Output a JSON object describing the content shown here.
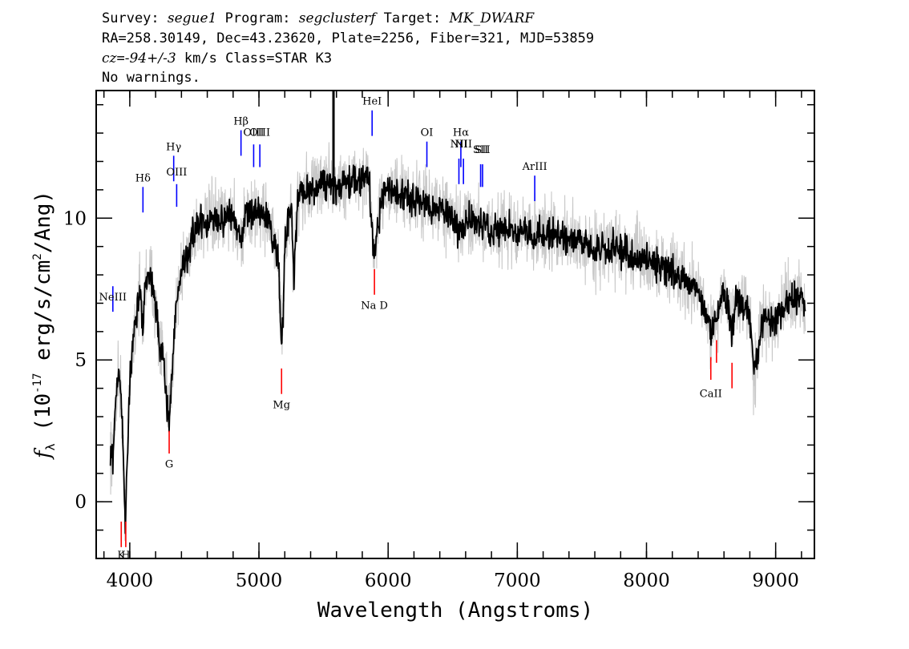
{
  "header": {
    "line1": {
      "survey_label": "Survey: ",
      "survey_value": "segue1",
      "program_label": " Program: ",
      "program_value": "segclusterf",
      "target_label": " Target: ",
      "target_value": "MK_DWARF"
    },
    "line2": "RA=258.30149, Dec=43.23620, Plate=2256, Fiber=321, MJD=53859",
    "line3": {
      "cz_label": "cz",
      "cz_eq": "=",
      "cz_value": "-94+/-3",
      "cz_rest": " km/s Class=STAR K3"
    },
    "line4": "No warnings."
  },
  "chart_data": {
    "type": "line",
    "xlabel": "Wavelength (Angstroms)",
    "ylabel": {
      "prefix": "f",
      "subscript": "λ",
      "open": " (10",
      "exponent": "-17",
      "middle": " erg/s/cm",
      "sq": "2",
      "close": "/Ang)"
    },
    "xlim": [
      3740,
      9300
    ],
    "ylim": [
      -2,
      14.5
    ],
    "x_ticks": [
      {
        "value": 4000,
        "label": "4000"
      },
      {
        "value": 5000,
        "label": "5000"
      },
      {
        "value": 6000,
        "label": "6000"
      },
      {
        "value": 7000,
        "label": "7000"
      },
      {
        "value": 8000,
        "label": "8000"
      },
      {
        "value": 9000,
        "label": "9000"
      }
    ],
    "x_minor_step": 200,
    "y_ticks": [
      {
        "value": 0,
        "label": "0"
      },
      {
        "value": 5,
        "label": "5"
      },
      {
        "value": 10,
        "label": "10"
      }
    ],
    "y_minor_step": 1,
    "series": [
      {
        "role": "flux",
        "color": "#c8c8c8",
        "noise": 0.75,
        "x": [
          3850,
          3870,
          3890,
          3910,
          3930,
          3950,
          3965,
          3980,
          4000,
          4020,
          4050,
          4080,
          4101,
          4120,
          4150,
          4180,
          4200,
          4230,
          4260,
          4290,
          4305,
          4320,
          4340,
          4360,
          4380,
          4400,
          4450,
          4500,
          4550,
          4600,
          4650,
          4700,
          4750,
          4800,
          4861,
          4900,
          4950,
          5000,
          5050,
          5100,
          5150,
          5172,
          5185,
          5200,
          5250,
          5270,
          5300,
          5400,
          5500,
          5577,
          5600,
          5700,
          5800,
          5850,
          5893,
          5950,
          6000,
          6100,
          6200,
          6300,
          6400,
          6500,
          6563,
          6600,
          6700,
          6800,
          6900,
          7000,
          7200,
          7400,
          7600,
          7800,
          8000,
          8200,
          8400,
          8498,
          8542,
          8600,
          8662,
          8700,
          8800,
          8830,
          8900,
          9000,
          9100,
          9200,
          9230
        ],
        "y": [
          2.0,
          1.5,
          3.5,
          4.5,
          4.0,
          1.5,
          -0.5,
          1.5,
          4.0,
          5.5,
          6.5,
          7.5,
          6.0,
          7.8,
          8.2,
          7.5,
          6.8,
          5.5,
          5.0,
          3.5,
          2.8,
          4.0,
          5.5,
          7.0,
          7.5,
          8.2,
          8.8,
          9.5,
          9.8,
          9.8,
          10.0,
          9.8,
          10.2,
          10.0,
          9.3,
          10.2,
          10.0,
          10.3,
          10.1,
          9.5,
          8.5,
          5.8,
          6.0,
          9.0,
          10.5,
          7.8,
          10.8,
          11.0,
          11.3,
          11.3,
          11.0,
          11.3,
          11.4,
          11.4,
          8.5,
          10.8,
          11.0,
          10.8,
          10.7,
          10.5,
          10.3,
          10.0,
          9.5,
          10.0,
          9.9,
          9.6,
          9.6,
          9.5,
          9.5,
          9.2,
          9.0,
          8.9,
          8.5,
          8.2,
          7.5,
          6.0,
          6.5,
          7.5,
          6.0,
          7.2,
          6.6,
          4.5,
          6.3,
          6.5,
          7.0,
          7.3,
          6.5
        ]
      },
      {
        "role": "model",
        "color": "#000000",
        "noise": 0.35,
        "x": [
          3850,
          3870,
          3890,
          3910,
          3930,
          3950,
          3965,
          3980,
          4000,
          4020,
          4050,
          4080,
          4101,
          4120,
          4150,
          4180,
          4200,
          4230,
          4260,
          4290,
          4305,
          4320,
          4340,
          4360,
          4380,
          4400,
          4450,
          4500,
          4550,
          4600,
          4650,
          4700,
          4750,
          4800,
          4861,
          4900,
          4950,
          5000,
          5050,
          5100,
          5150,
          5172,
          5185,
          5200,
          5250,
          5270,
          5300,
          5400,
          5500,
          5577,
          5600,
          5700,
          5800,
          5850,
          5893,
          5950,
          6000,
          6100,
          6200,
          6300,
          6400,
          6500,
          6563,
          6600,
          6700,
          6800,
          6900,
          7000,
          7200,
          7400,
          7600,
          7800,
          8000,
          8200,
          8400,
          8498,
          8542,
          8600,
          8662,
          8700,
          8800,
          8830,
          8900,
          9000,
          9100,
          9200,
          9230
        ],
        "y": [
          2.0,
          1.5,
          3.5,
          4.5,
          4.0,
          1.5,
          -0.5,
          1.5,
          4.0,
          5.5,
          6.5,
          7.5,
          6.0,
          7.8,
          8.2,
          7.5,
          6.8,
          5.5,
          5.0,
          3.5,
          2.8,
          4.0,
          5.5,
          7.0,
          7.5,
          8.2,
          8.8,
          9.5,
          9.8,
          9.8,
          10.0,
          9.8,
          10.2,
          10.0,
          9.3,
          10.2,
          10.0,
          10.3,
          10.1,
          9.5,
          8.5,
          5.8,
          6.0,
          9.0,
          10.5,
          7.8,
          10.8,
          11.0,
          11.3,
          11.3,
          11.0,
          11.3,
          11.4,
          11.4,
          8.5,
          10.8,
          11.0,
          10.8,
          10.7,
          10.5,
          10.3,
          10.0,
          9.5,
          10.0,
          9.9,
          9.6,
          9.6,
          9.5,
          9.5,
          9.2,
          9.0,
          8.9,
          8.5,
          8.2,
          7.5,
          6.0,
          6.5,
          7.5,
          6.0,
          7.2,
          6.6,
          4.5,
          6.3,
          6.5,
          7.0,
          7.3,
          6.5
        ]
      }
    ],
    "sky_line": {
      "wavelength": 5577,
      "y_from": 10.5,
      "y_to": 14.5,
      "color": "#000000"
    },
    "emission_lines": [
      {
        "label": "NeIII",
        "wavelength": 3869,
        "y_from": 6.7,
        "y_to": 7.6,
        "label_y": 7.1,
        "color": "#0000ff"
      },
      {
        "label": "Hδ",
        "wavelength": 4102,
        "y_from": 10.2,
        "y_to": 11.1,
        "label_y": 11.3,
        "color": "#0000ff"
      },
      {
        "label": "Hγ",
        "wavelength": 4340,
        "y_from": 11.3,
        "y_to": 12.2,
        "label_y": 12.4,
        "color": "#0000ff"
      },
      {
        "label": "OIII",
        "wavelength": 4363,
        "y_from": 10.4,
        "y_to": 11.2,
        "label_y": 11.5,
        "color": "#0000ff"
      },
      {
        "label": "Hβ",
        "wavelength": 4861,
        "y_from": 12.2,
        "y_to": 13.1,
        "label_y": 13.3,
        "color": "#0000ff"
      },
      {
        "label": "OIII",
        "wavelength": 4959,
        "y_from": 11.8,
        "y_to": 12.6,
        "label_y": 12.9,
        "color": "#0000ff"
      },
      {
        "label": "OIII",
        "wavelength": 5007,
        "y_from": 11.8,
        "y_to": 12.6,
        "label_y": 12.9,
        "color": "#0000ff"
      },
      {
        "label": "HeI",
        "wavelength": 5876,
        "y_from": 12.9,
        "y_to": 13.8,
        "label_y": 14.0,
        "color": "#0000ff"
      },
      {
        "label": "OI",
        "wavelength": 6300,
        "y_from": 11.8,
        "y_to": 12.7,
        "label_y": 12.9,
        "color": "#0000ff"
      },
      {
        "label": "NII",
        "wavelength": 6548,
        "y_from": 11.2,
        "y_to": 12.1,
        "label_y": 12.5,
        "color": "#0000ff"
      },
      {
        "label": "Hα",
        "wavelength": 6563,
        "y_from": 11.8,
        "y_to": 12.7,
        "label_y": 12.9,
        "color": "#0000ff"
      },
      {
        "label": "NII",
        "wavelength": 6583,
        "y_from": 11.2,
        "y_to": 12.1,
        "label_y": 12.5,
        "color": "#0000ff"
      },
      {
        "label": "SII",
        "wavelength": 6716,
        "y_from": 11.1,
        "y_to": 11.9,
        "label_y": 12.3,
        "color": "#0000ff"
      },
      {
        "label": "SII",
        "wavelength": 6731,
        "y_from": 11.1,
        "y_to": 11.9,
        "label_y": 12.3,
        "color": "#0000ff"
      },
      {
        "label": "ArIII",
        "wavelength": 7135,
        "y_from": 10.6,
        "y_to": 11.5,
        "label_y": 11.7,
        "color": "#0000ff"
      }
    ],
    "absorption_lines": [
      {
        "label": "K",
        "wavelength": 3934,
        "y_from": -1.6,
        "y_to": -0.7,
        "label_y": -2.0,
        "color": "#ff0000"
      },
      {
        "label": "H",
        "wavelength": 3969,
        "y_from": -1.6,
        "y_to": -0.7,
        "label_y": -2.0,
        "color": "#ff0000"
      },
      {
        "label": "G",
        "wavelength": 4305,
        "y_from": 1.7,
        "y_to": 2.5,
        "label_y": 1.2,
        "color": "#ff0000"
      },
      {
        "label": "Mg",
        "wavelength": 5175,
        "y_from": 3.8,
        "y_to": 4.7,
        "label_y": 3.3,
        "color": "#ff0000"
      },
      {
        "label": "Na D",
        "wavelength": 5894,
        "y_from": 7.3,
        "y_to": 8.2,
        "label_y": 6.8,
        "color": "#ff0000"
      },
      {
        "label": "CaII",
        "wavelength": 8498,
        "y_from": 4.3,
        "y_to": 5.1,
        "label_y": 3.7,
        "color": "#ff0000"
      },
      {
        "label": "CaII",
        "wavelength": 8542,
        "y_from": 4.9,
        "y_to": 5.7,
        "label_y": null,
        "color": "#ff0000"
      },
      {
        "label": "CaII",
        "wavelength": 8662,
        "y_from": 4.0,
        "y_to": 4.9,
        "label_y": null,
        "color": "#ff0000"
      }
    ]
  }
}
